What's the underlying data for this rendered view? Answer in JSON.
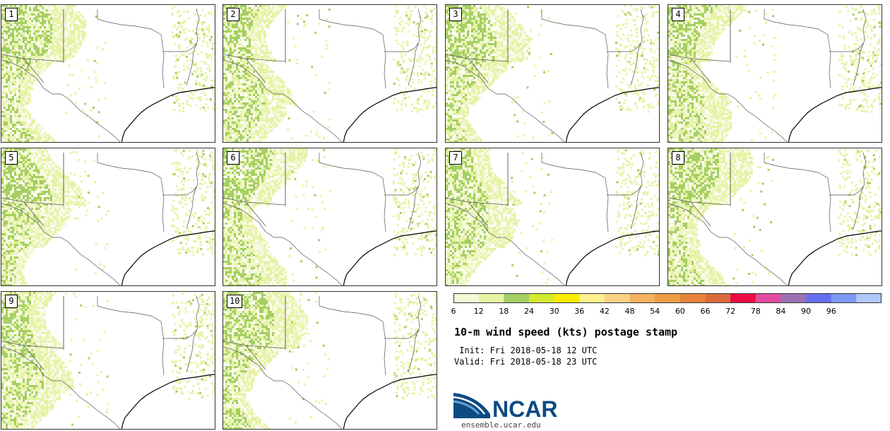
{
  "panels": [
    {
      "label": "1"
    },
    {
      "label": "2"
    },
    {
      "label": "3"
    },
    {
      "label": "4"
    },
    {
      "label": "5"
    },
    {
      "label": "6"
    },
    {
      "label": "7"
    },
    {
      "label": "8"
    },
    {
      "label": "9"
    },
    {
      "label": "10"
    }
  ],
  "colorbar": {
    "ticks": [
      "6",
      "12",
      "18",
      "24",
      "30",
      "36",
      "42",
      "48",
      "54",
      "60",
      "66",
      "72",
      "78",
      "84",
      "90",
      "96"
    ],
    "colors": [
      "#f5f8da",
      "#e6f3a5",
      "#a6cf63",
      "#d4ea2c",
      "#fcec00",
      "#fdf08f",
      "#fad187",
      "#f4b25f",
      "#ec9c44",
      "#e8843b",
      "#dc6b3c",
      "#ec0c43",
      "#e34b9f",
      "#9a72b4",
      "#6670ee",
      "#7d99f5",
      "#b2c7fb"
    ]
  },
  "title": "10-m wind speed (kts) postage stamp",
  "init": " Init: Fri 2018-05-18 12 UTC",
  "valid": "Valid: Fri 2018-05-18 23 UTC",
  "logo": {
    "text": "NCAR",
    "url": "ensemble.ucar.edu",
    "colors": {
      "dark": "#0d4a82",
      "light": "#6aa3d2"
    }
  }
}
